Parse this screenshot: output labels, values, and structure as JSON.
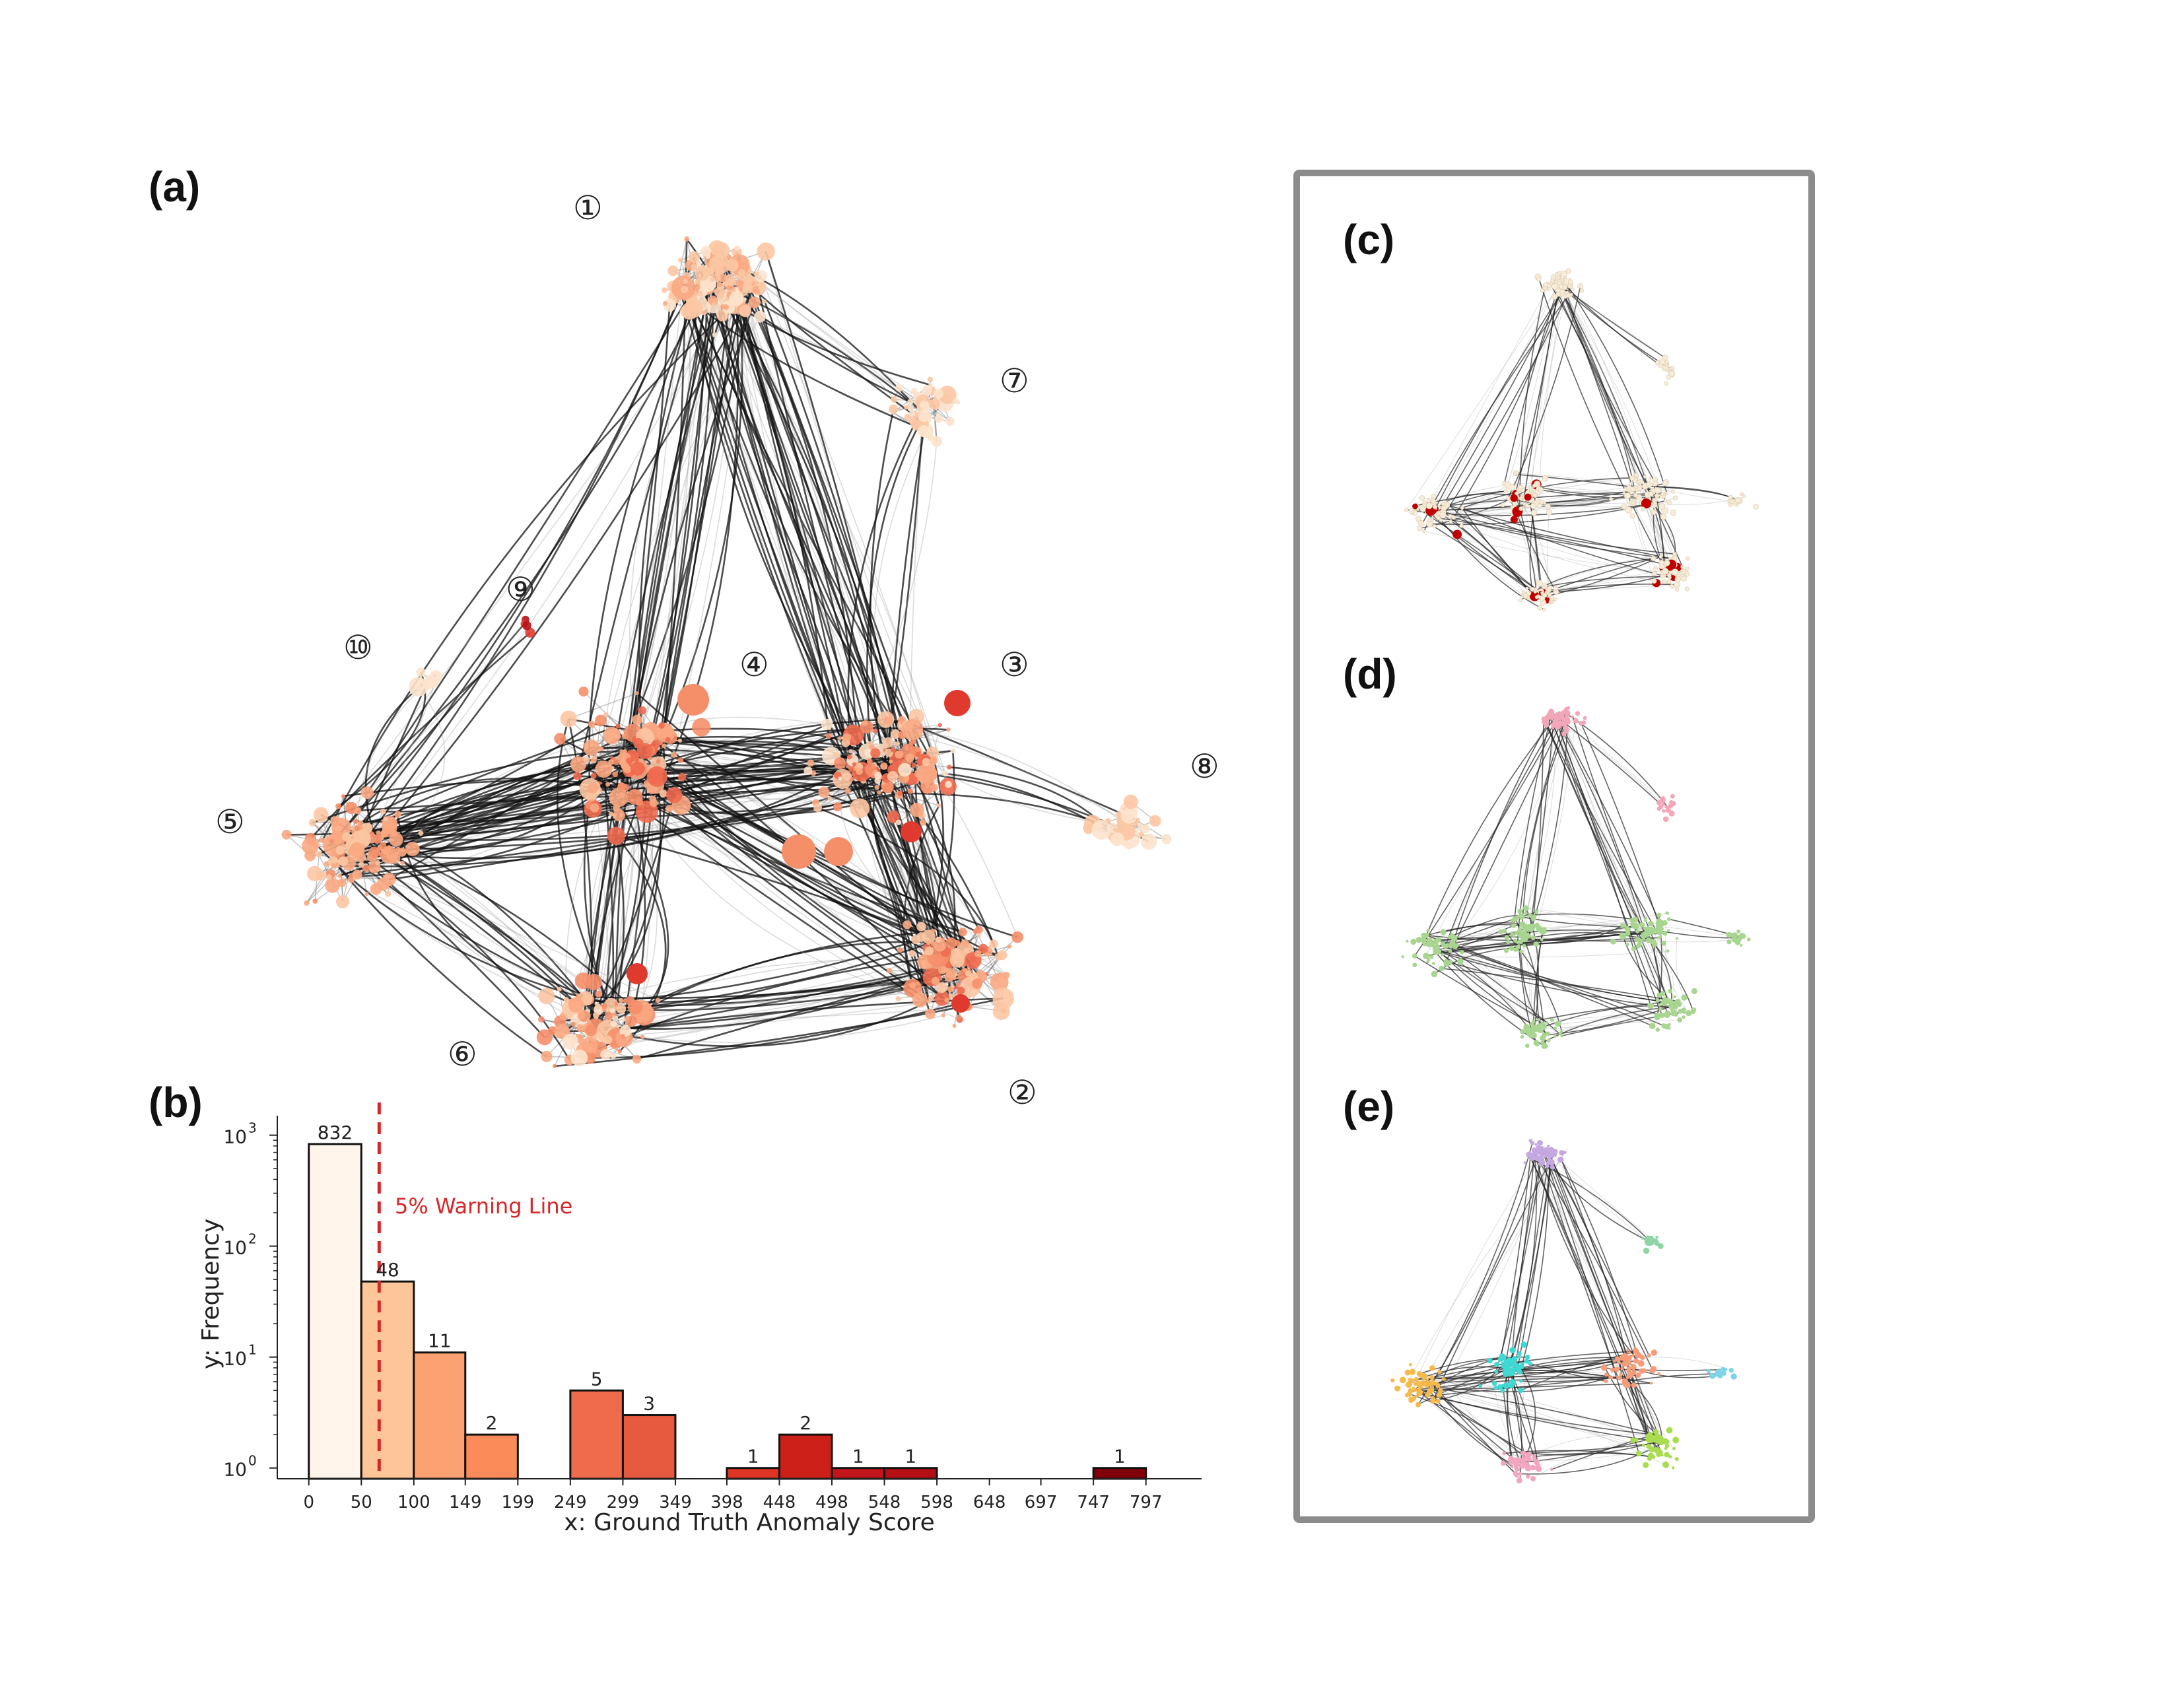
{
  "panels": {
    "a": "(a)",
    "b": "(b)",
    "c": "(c)",
    "d": "(d)",
    "e": "(e)"
  },
  "network_a": {
    "cluster_markers": [
      "①",
      "②",
      "③",
      "④",
      "⑤",
      "⑥",
      "⑦",
      "⑧",
      "⑨",
      "⑩"
    ],
    "node_colors": [
      "#fde3cc",
      "#fcc6a3",
      "#fba982",
      "#f58f6a",
      "#ef6a4f",
      "#e03a2e",
      "#b51218"
    ]
  },
  "network_c": {
    "node_color": "#f7ecd9",
    "anomaly_color": "#c00000"
  },
  "network_d": {
    "cluster_colors": [
      "#f2a6b8",
      "#a8d58f"
    ]
  },
  "network_e": {
    "cluster_colors": [
      "#c6a8e0",
      "#8fd6a6",
      "#f7b94a",
      "#3fd9d4",
      "#f79c7a",
      "#a9dc4f",
      "#f4a5c0",
      "#7fd4e8",
      "#d6b88a"
    ]
  },
  "chart_data": {
    "type": "bar",
    "title": "",
    "xlabel": "x: Ground Truth Anomaly Score",
    "ylabel": "y: Frequency",
    "yscale": "log",
    "ylim": [
      0.8,
      1500
    ],
    "yticks": [
      1,
      10,
      100,
      1000
    ],
    "ytick_labels": [
      [
        "10",
        "0"
      ],
      [
        "10",
        "1"
      ],
      [
        "10",
        "2"
      ],
      [
        "10",
        "3"
      ]
    ],
    "xlim": [
      -30,
      850
    ],
    "xtick_labels": [
      "0",
      "50",
      "100",
      "149",
      "199",
      "249",
      "299",
      "349",
      "398",
      "448",
      "498",
      "548",
      "598",
      "648",
      "697",
      "747",
      "797"
    ],
    "bins": [
      {
        "start": 0,
        "end": 50,
        "value": 832,
        "label": "832",
        "color": "#fff5eb"
      },
      {
        "start": 50,
        "end": 100,
        "value": 48,
        "label": "48",
        "color": "#fdc698"
      },
      {
        "start": 100,
        "end": 149,
        "value": 11,
        "label": "11",
        "color": "#fca272"
      },
      {
        "start": 149,
        "end": 199,
        "value": 2,
        "label": "2",
        "color": "#fb8c5a"
      },
      {
        "start": 249,
        "end": 299,
        "value": 5,
        "label": "5",
        "color": "#f06b4c"
      },
      {
        "start": 299,
        "end": 349,
        "value": 3,
        "label": "3",
        "color": "#e85a40"
      },
      {
        "start": 398,
        "end": 448,
        "value": 1,
        "label": "1",
        "color": "#e03425"
      },
      {
        "start": 448,
        "end": 498,
        "value": 2,
        "label": "2",
        "color": "#cc2018"
      },
      {
        "start": 498,
        "end": 548,
        "value": 1,
        "label": "1",
        "color": "#c2161a"
      },
      {
        "start": 548,
        "end": 598,
        "value": 1,
        "label": "1",
        "color": "#b30f14"
      },
      {
        "start": 747,
        "end": 797,
        "value": 1,
        "label": "1",
        "color": "#7f0009"
      }
    ],
    "warning_line": {
      "x": 67,
      "label": "5% Warning Line",
      "color": "#d62728"
    },
    "grid": false
  }
}
